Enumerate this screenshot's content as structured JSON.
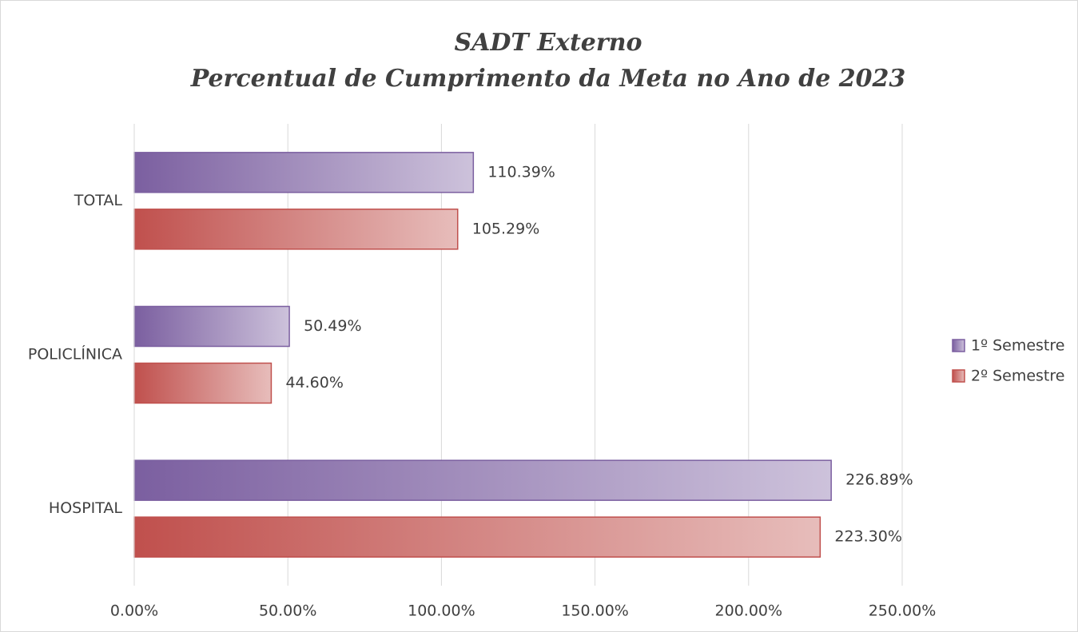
{
  "chart_data": {
    "type": "hbar",
    "title": "SADT Externo",
    "subtitle": "Percentual de Cumprimento da Meta no Ano de 2023",
    "categories": [
      "TOTAL",
      "POLICLÍNICA",
      "HOSPITAL"
    ],
    "series": [
      {
        "name": "1º Semestre",
        "color": "#7b5fa0",
        "values": [
          110.39,
          50.49,
          226.89
        ],
        "value_labels": [
          "110.39%",
          "50.49%",
          "226.89%"
        ]
      },
      {
        "name": "2º Semestre",
        "color": "#c0504d",
        "values": [
          105.29,
          44.6,
          223.3
        ],
        "value_labels": [
          "105.29%",
          "44.60%",
          "223.30%"
        ]
      }
    ],
    "xlim": [
      0,
      250
    ],
    "xticks": [
      {
        "value": 0,
        "label": "0.00%"
      },
      {
        "value": 50,
        "label": "50.00%"
      },
      {
        "value": 100,
        "label": "100.00%"
      },
      {
        "value": 150,
        "label": "150.00%"
      },
      {
        "value": 200,
        "label": "200.00%"
      },
      {
        "value": 250,
        "label": "250.00%"
      }
    ],
    "grid": true,
    "legend": "right"
  }
}
